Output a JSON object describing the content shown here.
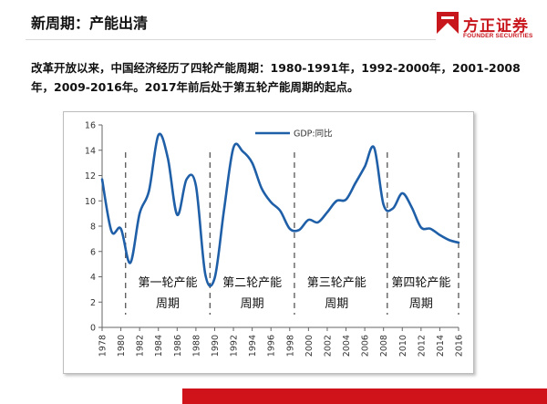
{
  "slide": {
    "title": "新周期：产能出清",
    "intro": "改革开放以来，中国经济经历了四轮产能周期：1980-1991年，1992-2000年，2001-2008年，2009-2016年。2017年前后处于第五轮产能周期的起点。"
  },
  "logo": {
    "cn": "方正证券",
    "en": "FOUNDER SECURITIES",
    "icon": "founder-securities-mark"
  },
  "colors": {
    "line": "#1f5fa8",
    "brand_red": "#c8161d",
    "divider": "#555555"
  },
  "chart_data": {
    "type": "line",
    "title": "",
    "xlabel": "",
    "ylabel": "",
    "xlim": [
      1978,
      2016
    ],
    "ylim": [
      0,
      16
    ],
    "y_ticks": [
      "0",
      "2",
      "4",
      "6",
      "8",
      "10",
      "12",
      "14",
      "16"
    ],
    "x_ticks": [
      "1978",
      "1980",
      "1982",
      "1984",
      "1986",
      "1988",
      "1990",
      "1992",
      "1994",
      "1996",
      "1998",
      "2000",
      "2002",
      "2004",
      "2006",
      "2008",
      "2010",
      "2012",
      "2014",
      "2016"
    ],
    "grid": false,
    "legend_position": "top-center",
    "series": [
      {
        "name": "GDP:同比",
        "x": [
          1978,
          1979,
          1980,
          1981,
          1982,
          1983,
          1984,
          1985,
          1986,
          1987,
          1988,
          1989,
          1990,
          1991,
          1992,
          1993,
          1994,
          1995,
          1996,
          1997,
          1998,
          1999,
          2000,
          2001,
          2002,
          2003,
          2004,
          2005,
          2006,
          2007,
          2008,
          2009,
          2010,
          2011,
          2012,
          2013,
          2014,
          2015,
          2016
        ],
        "y": [
          11.7,
          7.6,
          7.8,
          5.1,
          9.0,
          10.8,
          15.2,
          13.4,
          8.9,
          11.7,
          11.2,
          4.2,
          3.9,
          9.3,
          14.2,
          13.9,
          13.0,
          11.0,
          9.9,
          9.2,
          7.8,
          7.7,
          8.5,
          8.3,
          9.1,
          10.0,
          10.1,
          11.4,
          12.7,
          14.2,
          9.7,
          9.4,
          10.6,
          9.5,
          7.9,
          7.8,
          7.3,
          6.9,
          6.7
        ]
      }
    ],
    "cycle_dividers": [
      1980.5,
      1989.5,
      1998.5,
      2008.4,
      2016
    ],
    "annotations": [
      {
        "text": "第一轮产能",
        "text2": "周期",
        "x": 1985
      },
      {
        "text": "第二轮产能",
        "text2": "周期",
        "x": 1994
      },
      {
        "text": "第三轮产能",
        "text2": "周期",
        "x": 2003
      },
      {
        "text": "第四轮产能",
        "text2": "周期",
        "x": 2012
      }
    ]
  }
}
